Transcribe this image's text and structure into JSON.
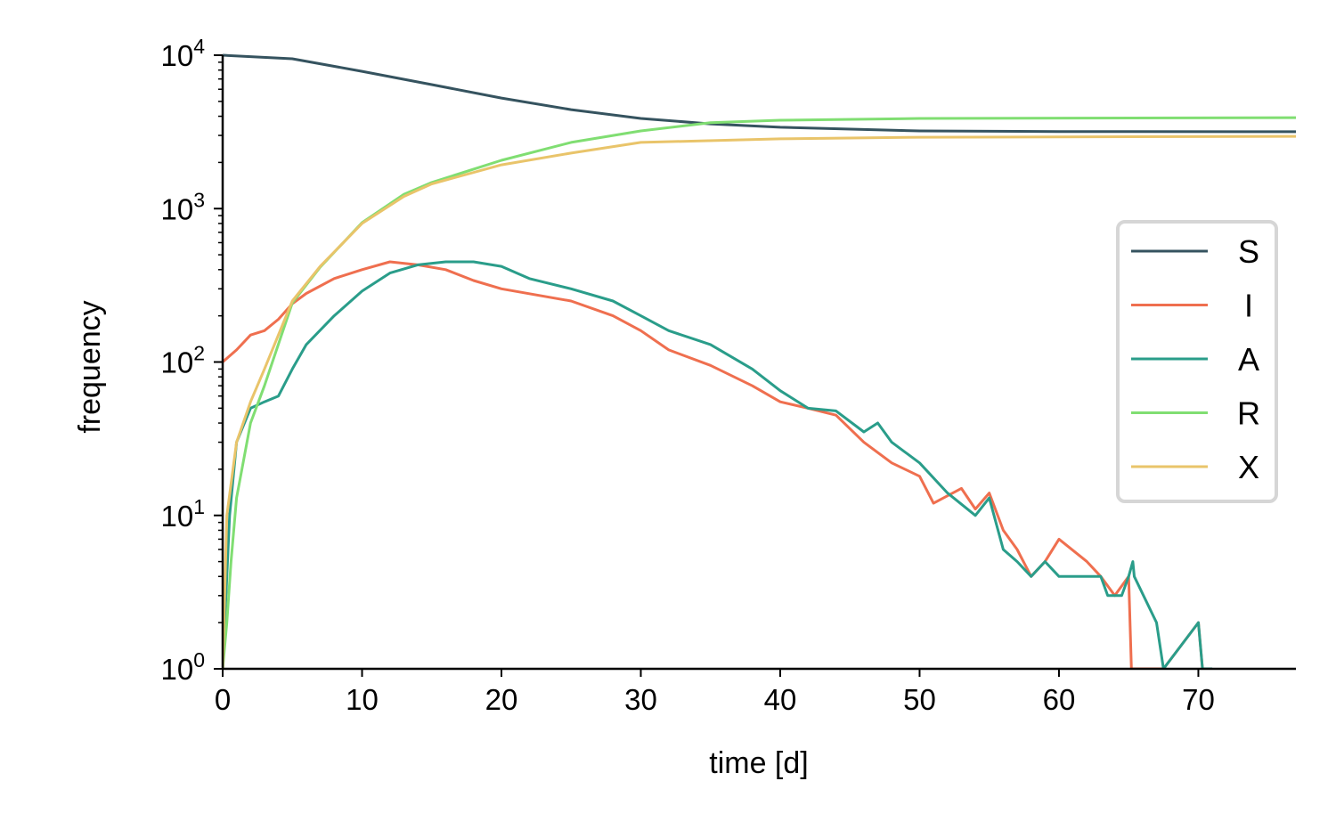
{
  "chart_data": {
    "type": "line",
    "title": "",
    "xlabel": "time [d]",
    "ylabel": "frequency",
    "xlim": [
      0,
      77
    ],
    "ylim": [
      1,
      10000
    ],
    "yscale": "log",
    "grid": false,
    "legend_placement": "right",
    "x_ticks": [
      0,
      10,
      20,
      30,
      40,
      50,
      60,
      70
    ],
    "y_ticks": [
      {
        "base": "10",
        "exp": "0",
        "value": 1
      },
      {
        "base": "10",
        "exp": "1",
        "value": 10
      },
      {
        "base": "10",
        "exp": "2",
        "value": 100
      },
      {
        "base": "10",
        "exp": "3",
        "value": 1000
      },
      {
        "base": "10",
        "exp": "4",
        "value": 10000
      }
    ],
    "series": [
      {
        "name": "S",
        "color": "#35535f",
        "x": [
          0,
          5,
          10,
          15,
          20,
          25,
          30,
          35,
          40,
          50,
          60,
          77
        ],
        "y": [
          10000,
          9480,
          7850,
          6430,
          5260,
          4420,
          3870,
          3570,
          3390,
          3210,
          3180,
          3170
        ]
      },
      {
        "name": "I",
        "color": "#ef6f4f",
        "x": [
          0,
          1,
          2,
          3,
          4,
          5,
          6,
          8,
          10,
          12,
          14,
          16,
          18,
          20,
          25,
          28,
          30,
          32,
          35,
          38,
          40,
          42,
          44,
          46,
          48,
          50,
          51,
          53,
          54,
          55,
          56,
          57,
          58,
          59,
          60,
          62,
          63,
          64,
          65,
          65.2,
          67.5,
          70,
          70.3
        ],
        "y": [
          100,
          120,
          150,
          160,
          190,
          240,
          280,
          350,
          400,
          450,
          430,
          400,
          340,
          300,
          250,
          200,
          160,
          120,
          95,
          70,
          55,
          50,
          45,
          30,
          22,
          18,
          12,
          15,
          11,
          14,
          8,
          6,
          4,
          5,
          7,
          5,
          4,
          3,
          4,
          1,
          1,
          2,
          1
        ]
      },
      {
        "name": "A",
        "color": "#2a9d8a",
        "x": [
          0,
          0.5,
          1,
          2,
          3,
          4,
          5,
          6,
          8,
          10,
          12,
          14,
          16,
          18,
          20,
          22,
          25,
          28,
          30,
          32,
          35,
          38,
          40,
          42,
          44,
          46,
          47,
          48,
          50,
          52,
          54,
          55,
          56,
          57,
          58,
          59,
          60,
          63,
          63.5,
          64.5,
          65,
          65.3,
          65.4,
          67,
          67.5,
          70,
          70.3,
          71
        ],
        "y": [
          1,
          10,
          30,
          50,
          55,
          60,
          90,
          130,
          200,
          290,
          380,
          430,
          450,
          450,
          420,
          350,
          300,
          250,
          200,
          160,
          130,
          90,
          65,
          50,
          48,
          35,
          40,
          30,
          22,
          14,
          10,
          13,
          6,
          5,
          4,
          5,
          4,
          4,
          3,
          3,
          4,
          5,
          4,
          2,
          1,
          2,
          1,
          1
        ]
      },
      {
        "name": "R",
        "color": "#80de72",
        "x": [
          0,
          0.3,
          0.6,
          1,
          2,
          3,
          5,
          7,
          10,
          13,
          15,
          20,
          25,
          30,
          35,
          40,
          50,
          77
        ],
        "y": [
          1,
          2,
          5,
          13,
          40,
          70,
          243,
          415,
          810,
          1240,
          1480,
          2065,
          2700,
          3210,
          3630,
          3770,
          3870,
          3920
        ]
      },
      {
        "name": "X",
        "color": "#e9c46a",
        "x": [
          0,
          0.3,
          1,
          2,
          3,
          5,
          7,
          10,
          13,
          15,
          20,
          25,
          30,
          40,
          50,
          77
        ],
        "y": [
          1,
          10,
          30,
          55,
          90,
          250,
          420,
          800,
          1200,
          1450,
          1930,
          2300,
          2700,
          2850,
          2920,
          2960
        ]
      }
    ]
  }
}
